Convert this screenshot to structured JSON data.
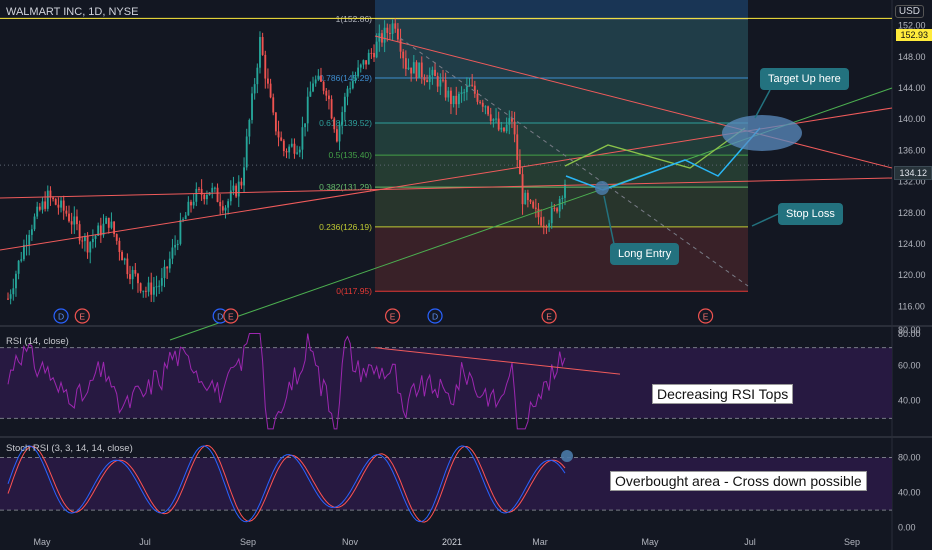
{
  "header": {
    "title": "WALMART INC, 1D, NYSE",
    "currency": "USD"
  },
  "chart_data": [
    {
      "type": "candlestick",
      "symbol": "WALMART INC",
      "interval": "1D",
      "exchange": "NYSE",
      "ylim": [
        114,
        154
      ],
      "y_ticks": [
        "116.00",
        "120.00",
        "124.00",
        "128.00",
        "132.00",
        "136.00",
        "140.00",
        "144.00",
        "148.00",
        "152.00"
      ],
      "x_ticks": [
        "May",
        "Jul",
        "Sep",
        "Nov",
        "2021",
        "Mar",
        "May",
        "Jul",
        "Sep"
      ],
      "last_price": "134.12",
      "high_line_price": "152.93",
      "price_path": [
        [
          0,
          117
        ],
        [
          8,
          126
        ],
        [
          15,
          130
        ],
        [
          22,
          128
        ],
        [
          30,
          124
        ],
        [
          38,
          127
        ],
        [
          45,
          121
        ],
        [
          52,
          118
        ],
        [
          58,
          119
        ],
        [
          65,
          126
        ],
        [
          70,
          130
        ],
        [
          76,
          131
        ],
        [
          82,
          129
        ],
        [
          88,
          132
        ],
        [
          95,
          150
        ],
        [
          100,
          140
        ],
        [
          104,
          136
        ],
        [
          110,
          137
        ],
        [
          115,
          145
        ],
        [
          120,
          144
        ],
        [
          124,
          138
        ],
        [
          128,
          144
        ],
        [
          134,
          147
        ],
        [
          140,
          150
        ],
        [
          146,
          152.5
        ],
        [
          150,
          147
        ],
        [
          156,
          146
        ],
        [
          162,
          145
        ],
        [
          168,
          142
        ],
        [
          174,
          144
        ],
        [
          180,
          142
        ],
        [
          186,
          138
        ],
        [
          190,
          140
        ],
        [
          194,
          130
        ],
        [
          198,
          128
        ],
        [
          202,
          127
        ],
        [
          206,
          128
        ],
        [
          210,
          132
        ]
      ],
      "fib_levels": [
        {
          "ratio": "1",
          "price": 152.86,
          "label": "1(152.86)"
        },
        {
          "ratio": "0.786",
          "price": 145.29,
          "label": "0.786(145.29)"
        },
        {
          "ratio": "0.618",
          "price": 139.52,
          "label": "0.618(139.52)"
        },
        {
          "ratio": "0.5",
          "price": 135.4,
          "label": "0.5(135.40)"
        },
        {
          "ratio": "0.382",
          "price": 131.29,
          "label": "0.382(131.29)"
        },
        {
          "ratio": "0.236",
          "price": 126.19,
          "label": "0.236(126.19)"
        },
        {
          "ratio": "0",
          "price": 117.95,
          "label": "0(117.95)"
        }
      ],
      "events": [
        {
          "letter": "D",
          "t": 20,
          "kind": "dividend"
        },
        {
          "letter": "E",
          "t": 28,
          "kind": "earnings"
        },
        {
          "letter": "D",
          "t": 80,
          "kind": "dividend"
        },
        {
          "letter": "E",
          "t": 84,
          "kind": "earnings"
        },
        {
          "letter": "E",
          "t": 145,
          "kind": "earnings"
        },
        {
          "letter": "D",
          "t": 161,
          "kind": "dividend"
        },
        {
          "letter": "E",
          "t": 204,
          "kind": "earnings"
        },
        {
          "letter": "E",
          "t": 263,
          "kind": "earnings"
        }
      ]
    },
    {
      "type": "line",
      "name": "RSI (14, close)",
      "ylim": [
        20,
        80
      ],
      "y_ticks": [
        "40.00",
        "60.00",
        "80.00"
      ],
      "upper_band": 70,
      "lower_band": 30
    },
    {
      "type": "line",
      "name": "Stoch RSI (3, 3, 14, 14, close)",
      "ylim": [
        -5,
        100
      ],
      "y_ticks": [
        "0.00",
        "40.00",
        "80.00"
      ],
      "upper_band": 80,
      "lower_band": 20
    }
  ],
  "annotations": {
    "target": "Target Up here",
    "stop": "Stop Loss",
    "entry": "Long Entry",
    "rsi_note": "Decreasing RSI Tops",
    "stoch_note": "Overbought area - Cross down possible"
  },
  "colors": {
    "background": "#131722",
    "up": "#26a69a",
    "down": "#ef5350",
    "rsi": "#9c27b0",
    "stoch_k": "#2962ff",
    "stoch_d": "#ff5252",
    "highline": "#ffeb3b",
    "annotation": "#23727f"
  }
}
